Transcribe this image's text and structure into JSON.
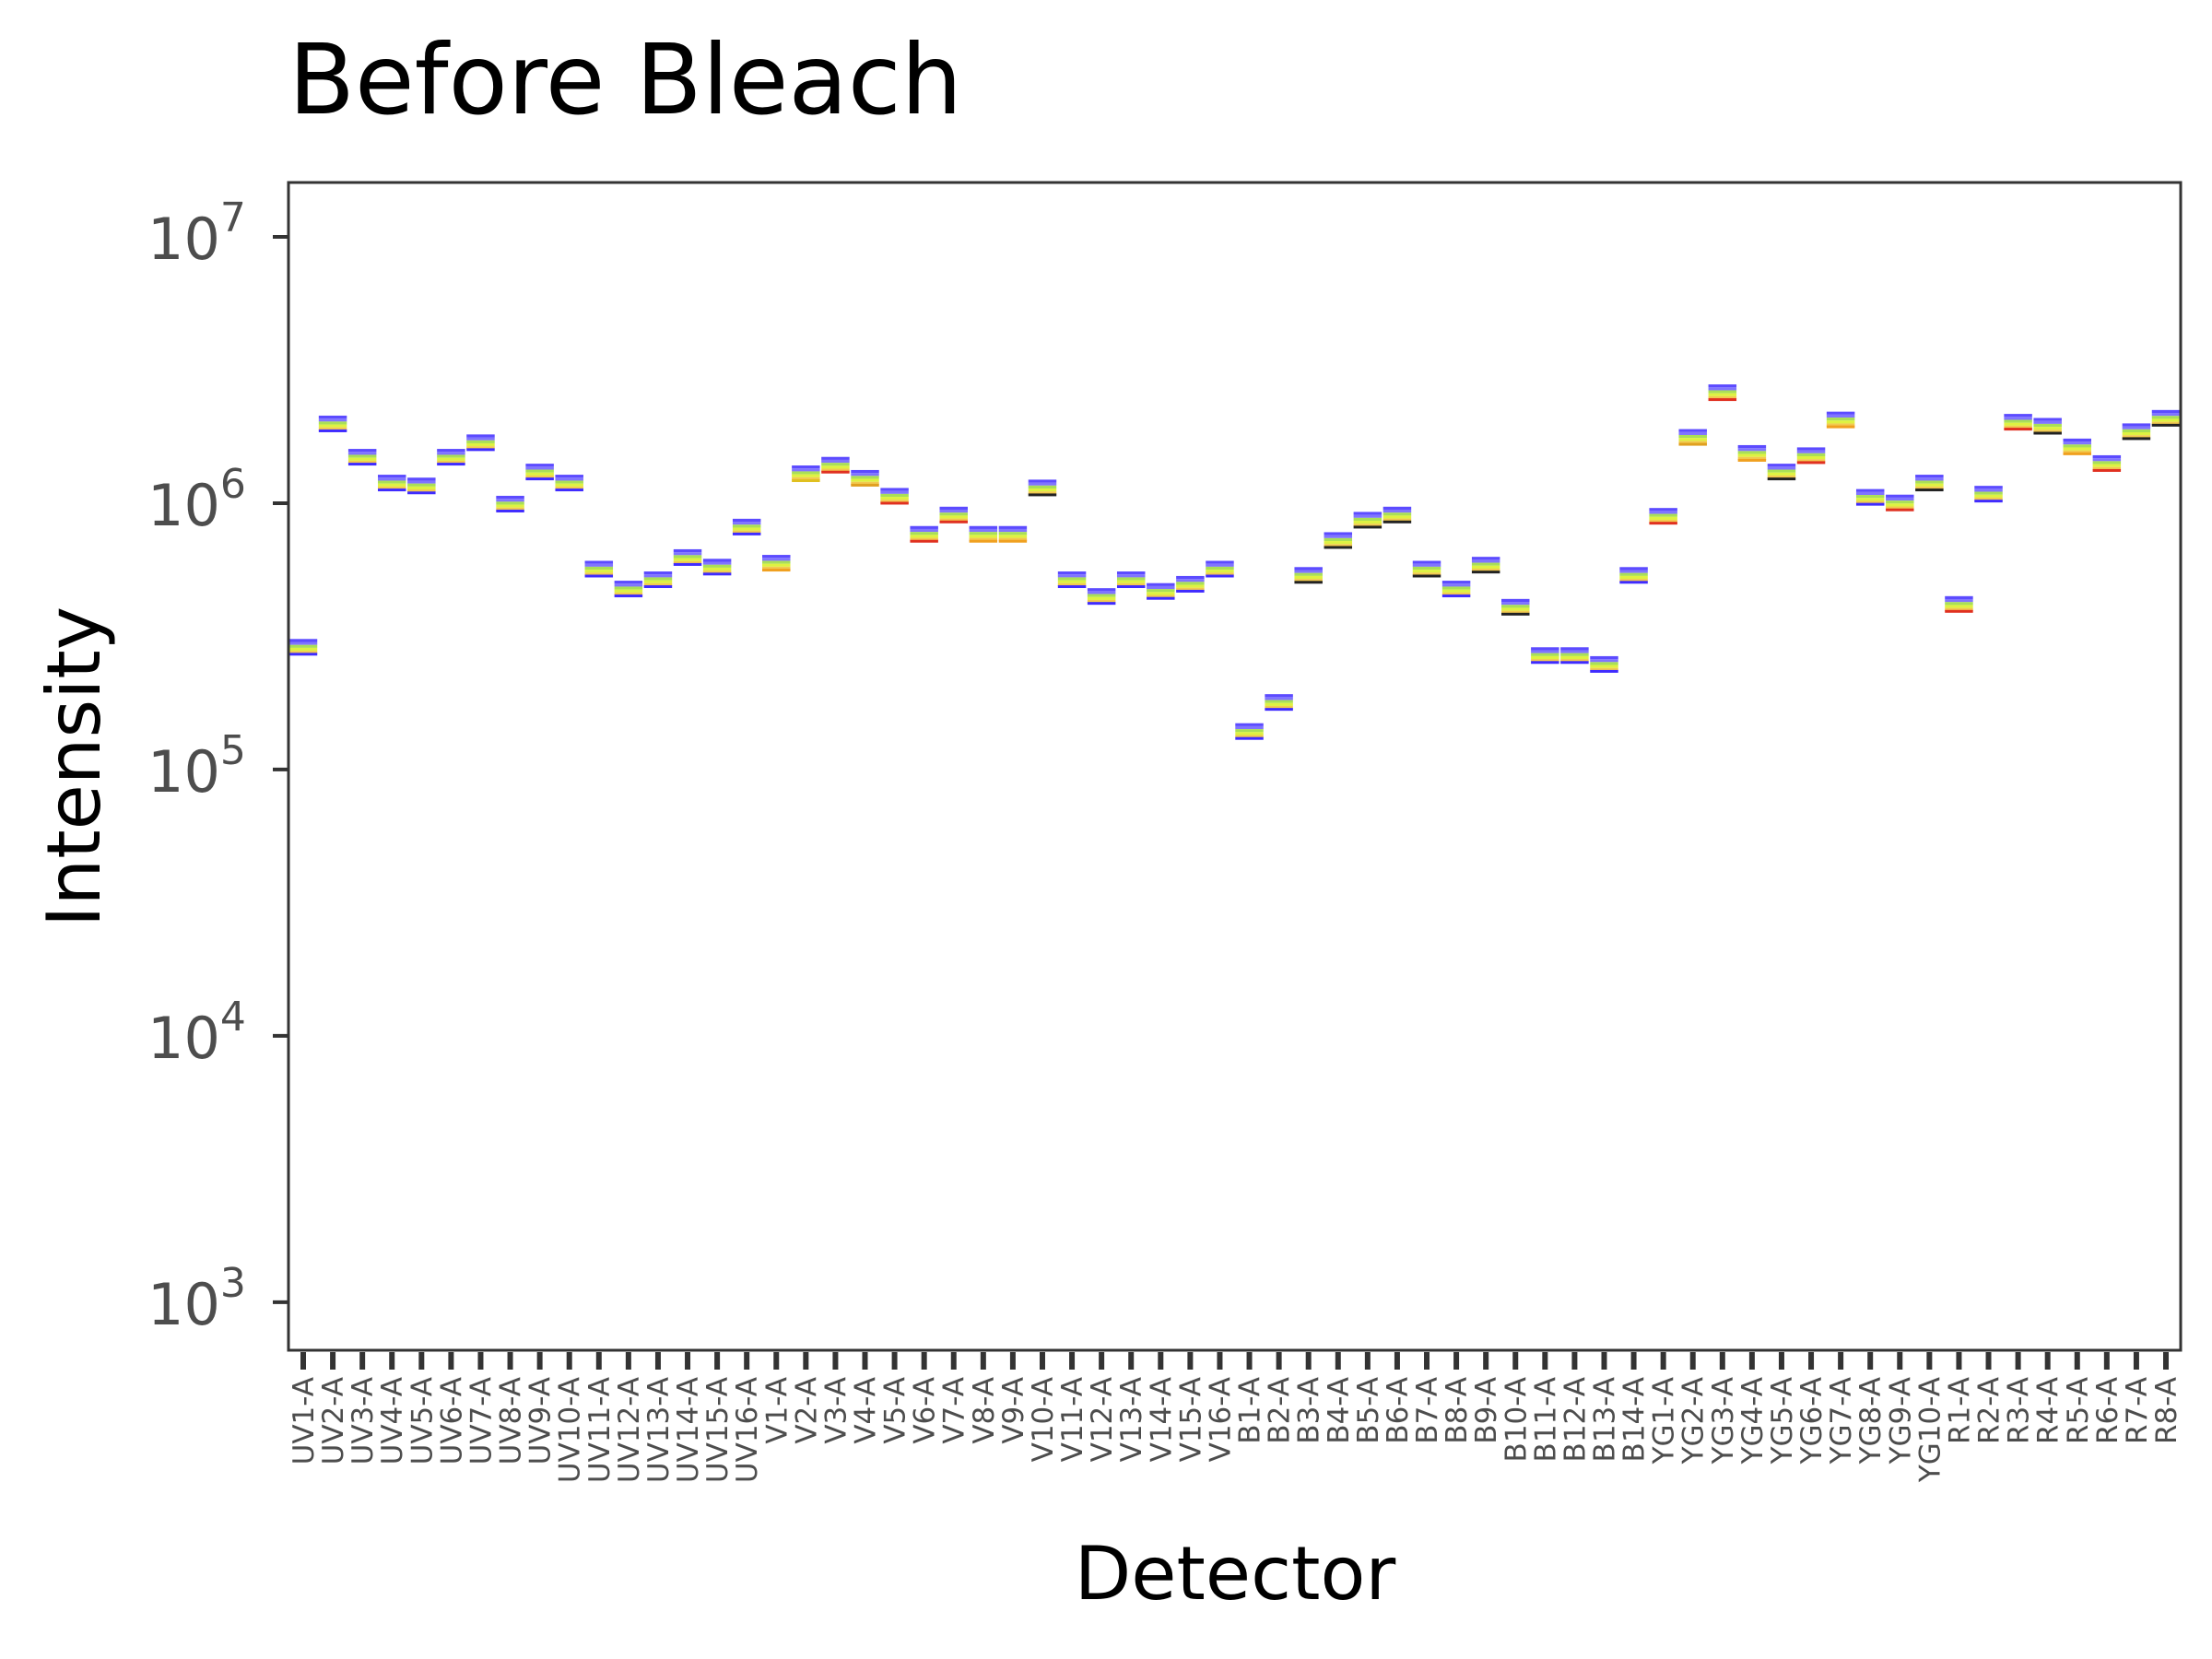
{
  "chart_data": {
    "type": "scatter",
    "title": "Before Bleach",
    "xlabel": "Detector",
    "ylabel": "Intensity",
    "y_scale": "log10",
    "ylim": [
      660,
      16000000
    ],
    "y_ticks": [
      {
        "value": 1000,
        "base": "10",
        "exp": "3"
      },
      {
        "value": 10000,
        "base": "10",
        "exp": "4"
      },
      {
        "value": 100000,
        "base": "10",
        "exp": "5"
      },
      {
        "value": 1000000,
        "base": "10",
        "exp": "6"
      },
      {
        "value": 10000000,
        "base": "10",
        "exp": "7"
      }
    ],
    "grid": false,
    "legend": "none",
    "categories": [
      "UV1-A",
      "UV2-A",
      "UV3-A",
      "UV4-A",
      "UV5-A",
      "UV6-A",
      "UV7-A",
      "UV8-A",
      "UV9-A",
      "UV10-A",
      "UV11-A",
      "UV12-A",
      "UV13-A",
      "UV14-A",
      "UV15-A",
      "UV16-A",
      "V1-A",
      "V2-A",
      "V3-A",
      "V4-A",
      "V5-A",
      "V6-A",
      "V7-A",
      "V8-A",
      "V9-A",
      "V10-A",
      "V11-A",
      "V12-A",
      "V13-A",
      "V14-A",
      "V15-A",
      "V16-A",
      "B1-A",
      "B2-A",
      "B3-A",
      "B4-A",
      "B5-A",
      "B6-A",
      "B7-A",
      "B8-A",
      "B9-A",
      "B10-A",
      "B11-A",
      "B12-A",
      "B13-A",
      "B14-A",
      "YG1-A",
      "YG2-A",
      "YG3-A",
      "YG4-A",
      "YG5-A",
      "YG6-A",
      "YG7-A",
      "YG8-A",
      "YG9-A",
      "YG10-A",
      "R1-A",
      "R2-A",
      "R3-A",
      "R4-A",
      "R5-A",
      "R6-A",
      "R7-A",
      "R8-A"
    ],
    "values": [
      290000,
      2000000,
      1500000,
      1200000,
      1170000,
      1500000,
      1700000,
      1000000,
      1320000,
      1200000,
      570000,
      480000,
      520000,
      630000,
      580000,
      820000,
      600000,
      1300000,
      1400000,
      1250000,
      1070000,
      770000,
      910000,
      770000,
      770000,
      1150000,
      520000,
      450000,
      520000,
      470000,
      500000,
      570000,
      140000,
      180000,
      540000,
      730000,
      870000,
      910000,
      570000,
      480000,
      590000,
      410000,
      270000,
      270000,
      250000,
      540000,
      900000,
      1780000,
      2620000,
      1550000,
      1320000,
      1520000,
      2070000,
      1060000,
      1010000,
      1200000,
      420000,
      1090000,
      2030000,
      1960000,
      1640000,
      1420000,
      1870000,
      2100000
    ],
    "colors": [
      "#3f2bff",
      "#3f2bff",
      "#3f2bff",
      "#3f2bff",
      "#3f2bff",
      "#3f2bff",
      "#3f2bff",
      "#3f2bff",
      "#3f2bff",
      "#3f2bff",
      "#3f2bff",
      "#3f2bff",
      "#3f2bff",
      "#3f2bff",
      "#3f2bff",
      "#3f2bff",
      "#f0a020",
      "#e0c020",
      "#e03020",
      "#e0a020",
      "#e03020",
      "#e03020",
      "#e03020",
      "#f0a020",
      "#f0a020",
      "#222222",
      "#3f2bff",
      "#3f2bff",
      "#3f2bff",
      "#3f2bff",
      "#3f2bff",
      "#3f2bff",
      "#3f2bff",
      "#3f2bff",
      "#222222",
      "#222222",
      "#222222",
      "#222222",
      "#222222",
      "#3f2bff",
      "#222222",
      "#222222",
      "#3f2bff",
      "#3f2bff",
      "#3f2bff",
      "#3f2bff",
      "#e03020",
      "#e0a020",
      "#e03020",
      "#f0a020",
      "#222222",
      "#e03020",
      "#f0a020",
      "#3f2bff",
      "#e03020",
      "#222222",
      "#e03020",
      "#3f2bff",
      "#e03020",
      "#222222",
      "#f0a020",
      "#e03020",
      "#222222",
      "#222222"
    ],
    "band_colors": [
      "#3f2bff",
      "#6a5cff",
      "#9ad93a",
      "#d8f020",
      "#f0c030"
    ]
  }
}
